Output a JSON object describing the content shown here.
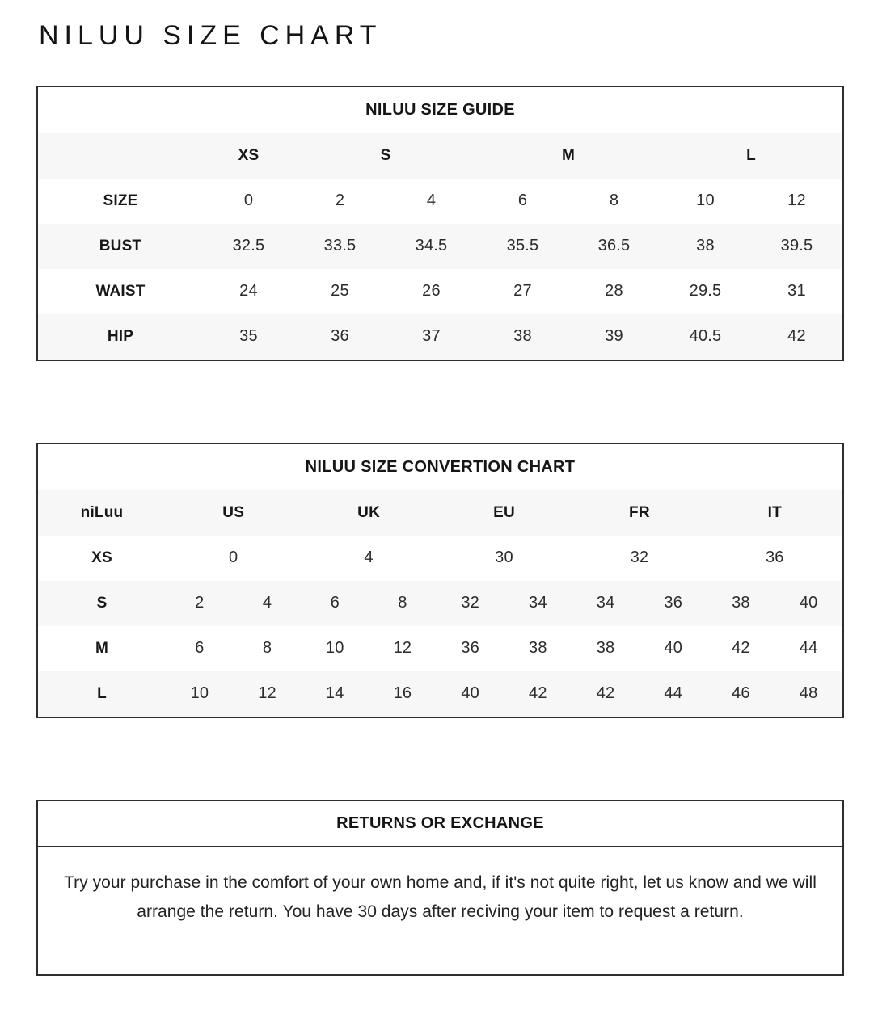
{
  "page": {
    "title": "NILUU SIZE CHART"
  },
  "size_guide": {
    "title": "NILUU SIZE GUIDE",
    "groups": [
      "XS",
      "S",
      "M",
      "L"
    ],
    "rows": [
      {
        "label": "SIZE",
        "values": [
          "0",
          "2",
          "4",
          "6",
          "8",
          "10",
          "12"
        ]
      },
      {
        "label": "BUST",
        "values": [
          "32.5",
          "33.5",
          "34.5",
          "35.5",
          "36.5",
          "38",
          "39.5"
        ]
      },
      {
        "label": "WAIST",
        "values": [
          "24",
          "25",
          "26",
          "27",
          "28",
          "29.5",
          "31"
        ]
      },
      {
        "label": "HIP",
        "values": [
          "35",
          "36",
          "37",
          "38",
          "39",
          "40.5",
          "42"
        ]
      }
    ]
  },
  "conversion": {
    "title": "NILUU SIZE CONVERTION CHART",
    "brand_label": "niLuu",
    "regions": [
      "US",
      "UK",
      "EU",
      "FR",
      "IT"
    ],
    "rows": [
      {
        "label": "XS",
        "values": [
          "0",
          "4",
          "30",
          "32",
          "36"
        ]
      },
      {
        "label": "S",
        "values": [
          "2",
          "4",
          "6",
          "8",
          "32",
          "34",
          "34",
          "36",
          "38",
          "40"
        ]
      },
      {
        "label": "M",
        "values": [
          "6",
          "8",
          "10",
          "12",
          "36",
          "38",
          "38",
          "40",
          "42",
          "44"
        ]
      },
      {
        "label": "L",
        "values": [
          "10",
          "12",
          "14",
          "16",
          "40",
          "42",
          "42",
          "44",
          "46",
          "48"
        ]
      }
    ]
  },
  "returns": {
    "title": "RETURNS OR EXCHANGE",
    "body": "Try your purchase in the comfort of your own home and, if it's not quite right, let us know and we will arrange the return. You have 30 days after reciving your item to request a return."
  },
  "colors": {
    "stripe": "#f7f7f7",
    "border": "#2e2e2e",
    "text": "#1f1f1f"
  }
}
